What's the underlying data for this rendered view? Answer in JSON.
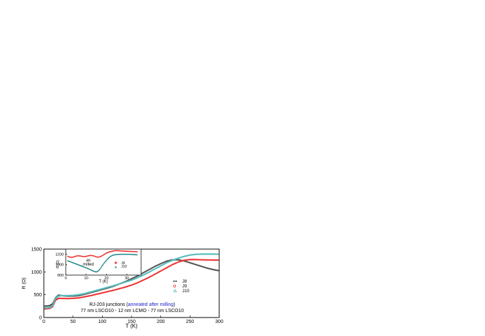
{
  "chart_data": [
    {
      "type": "scatter",
      "title": "",
      "xlabel": "T (K)",
      "ylabel": "R (Ω)",
      "xlim": [
        0,
        300
      ],
      "ylim": [
        0,
        1500
      ],
      "xticks": [
        "0",
        "50",
        "100",
        "150",
        "200",
        "250",
        "300"
      ],
      "yticks": [
        "0",
        "500",
        "1000",
        "1500"
      ],
      "grid": false,
      "legend_position": "right",
      "series": [
        {
          "name": "J8",
          "color": "#555555",
          "marker": "square",
          "x": [
            2,
            10,
            15,
            20,
            25,
            30,
            40,
            50,
            60,
            70,
            80,
            90,
            100,
            110,
            120,
            130,
            140,
            150,
            160,
            170,
            180,
            190,
            200,
            210,
            220,
            230,
            240,
            250,
            260,
            270,
            280,
            290,
            298
          ],
          "y": [
            250,
            260,
            300,
            430,
            490,
            480,
            470,
            470,
            480,
            510,
            545,
            580,
            615,
            650,
            690,
            740,
            790,
            850,
            910,
            980,
            1050,
            1120,
            1180,
            1235,
            1265,
            1265,
            1240,
            1200,
            1160,
            1120,
            1080,
            1050,
            1030
          ]
        },
        {
          "name": "J9",
          "color": "#ee3333",
          "marker": "circle",
          "x": [
            2,
            10,
            15,
            20,
            25,
            30,
            40,
            50,
            60,
            70,
            80,
            90,
            100,
            110,
            120,
            130,
            140,
            150,
            160,
            170,
            180,
            190,
            200,
            210,
            220,
            230,
            240,
            250,
            260,
            270,
            280,
            290,
            298
          ],
          "y": [
            190,
            200,
            240,
            380,
            420,
            420,
            415,
            420,
            430,
            455,
            480,
            510,
            540,
            570,
            600,
            635,
            670,
            710,
            760,
            820,
            880,
            950,
            1020,
            1090,
            1160,
            1215,
            1255,
            1270,
            1270,
            1265,
            1262,
            1260,
            1258
          ]
        },
        {
          "name": "J10",
          "color": "#55bbbb",
          "marker": "triangle",
          "x": [
            2,
            10,
            15,
            20,
            25,
            30,
            40,
            50,
            60,
            70,
            80,
            90,
            100,
            110,
            120,
            130,
            140,
            150,
            160,
            170,
            180,
            190,
            200,
            210,
            220,
            230,
            240,
            250,
            260,
            270,
            280,
            290,
            298
          ],
          "y": [
            210,
            220,
            260,
            420,
            470,
            480,
            480,
            485,
            500,
            525,
            560,
            595,
            630,
            665,
            700,
            740,
            780,
            820,
            870,
            930,
            995,
            1065,
            1130,
            1200,
            1255,
            1300,
            1340,
            1370,
            1385,
            1390,
            1390,
            1390,
            1388
          ]
        }
      ],
      "annotation": {
        "line1_prefix": "RJ-203 junctions (",
        "line1_highlight": "annealed after milling",
        "line1_suffix": ")",
        "line2": "77 nm LSCO10 - 12 nm LCMO - 77 nm LSCO10",
        "highlight_color": "#1a1acc"
      }
    },
    {
      "type": "scatter",
      "title": "",
      "xlabel": "T (K)",
      "ylabel": "R (Ω)",
      "xlim": [
        0,
        37
      ],
      "ylim": [
        800,
        1300
      ],
      "xticks": [
        "0",
        "10",
        "20",
        "30"
      ],
      "yticks": [
        "800",
        "1000",
        "1200"
      ],
      "grid": false,
      "legend_position": "right",
      "annotation": {
        "line1": "as",
        "line2": "milled",
        "color": "#1a1acc"
      },
      "series": [
        {
          "name": "J9",
          "color": "#ee3333",
          "marker": "circle",
          "x": [
            1,
            2,
            3,
            4,
            5,
            6,
            7,
            8,
            9,
            10,
            11,
            12,
            13,
            14,
            15,
            16,
            17,
            18,
            19,
            20,
            21,
            22,
            23,
            24,
            25,
            26,
            27,
            28,
            29,
            30,
            31,
            32,
            33,
            34,
            35
          ],
          "y": [
            1160,
            1145,
            1140,
            1150,
            1165,
            1170,
            1168,
            1160,
            1155,
            1160,
            1170,
            1178,
            1175,
            1165,
            1150,
            1145,
            1155,
            1175,
            1200,
            1225,
            1240,
            1250,
            1260,
            1268,
            1270,
            1268,
            1265,
            1262,
            1260,
            1258,
            1256,
            1255,
            1253,
            1250,
            1248
          ]
        },
        {
          "name": "J10",
          "color": "#2a8a8a",
          "marker": "triangle",
          "x": [
            1,
            2,
            3,
            4,
            5,
            6,
            7,
            8,
            9,
            10,
            11,
            12,
            13,
            14,
            15,
            16,
            17,
            18,
            19,
            20,
            21,
            22,
            23,
            24,
            25,
            26,
            27,
            28,
            29,
            30,
            31,
            32,
            33,
            34,
            35
          ],
          "y": [
            1075,
            1060,
            1045,
            1030,
            1015,
            1000,
            985,
            970,
            955,
            940,
            925,
            905,
            885,
            870,
            860,
            880,
            925,
            985,
            1040,
            1085,
            1125,
            1160,
            1180,
            1190,
            1195,
            1198,
            1200,
            1200,
            1200,
            1200,
            1200,
            1198,
            1195,
            1193,
            1190
          ]
        }
      ]
    }
  ]
}
